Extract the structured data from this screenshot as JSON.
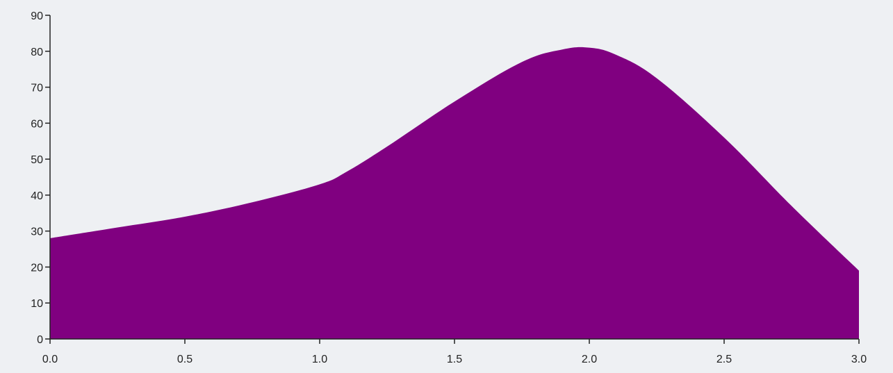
{
  "chart_data": {
    "type": "area",
    "title": "",
    "xlabel": "",
    "ylabel": "",
    "xlim": [
      0,
      3
    ],
    "ylim": [
      0,
      90
    ],
    "grid": false,
    "legend": "none",
    "x_ticks": [
      "0.0",
      "0.5",
      "1.0",
      "1.5",
      "2.0",
      "2.5",
      "3.0"
    ],
    "y_ticks": [
      "0",
      "10",
      "20",
      "30",
      "40",
      "50",
      "60",
      "70",
      "80",
      "90"
    ],
    "series": [
      {
        "color": "#800080",
        "x": [
          0.0,
          0.25,
          0.5,
          0.75,
          1.0,
          1.1,
          1.25,
          1.5,
          1.75,
          1.9,
          2.0,
          2.1,
          2.25,
          2.5,
          2.75,
          3.0
        ],
        "y": [
          28,
          31,
          34,
          38,
          43,
          46.5,
          53.5,
          66,
          77,
          80.5,
          81,
          79,
          72.5,
          56,
          37,
          19
        ]
      }
    ]
  }
}
